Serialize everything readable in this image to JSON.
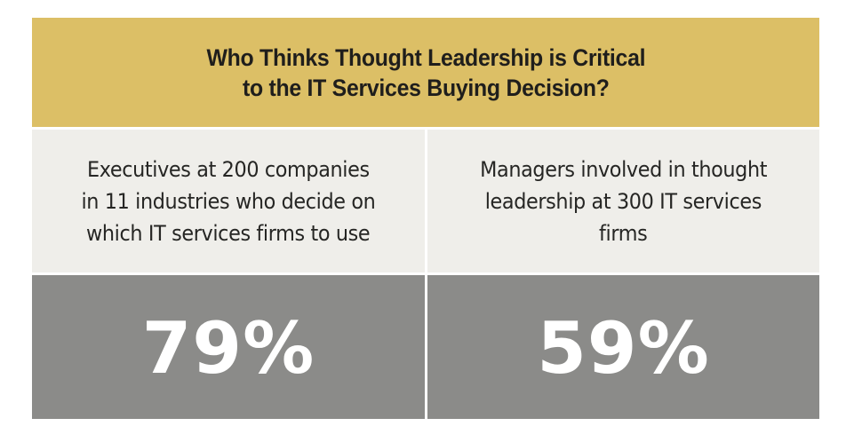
{
  "header": {
    "title_lines": [
      "Who Thinks Thought Leadership is Critical",
      "to the IT Services Buying Decision?"
    ]
  },
  "columns": [
    {
      "description_lines": [
        "Executives at 200 companies",
        "in 11 industries who decide on",
        "which IT services firms to use"
      ],
      "value": "79%"
    },
    {
      "description_lines": [
        "Managers involved in thought",
        "leadership at 300 IT services",
        "firms"
      ],
      "value": "59%"
    }
  ],
  "colors": {
    "header_bg": "#dcbf66",
    "description_bg": "#efeeea",
    "stat_bg": "#8b8b89",
    "stat_text": "#ffffff"
  }
}
